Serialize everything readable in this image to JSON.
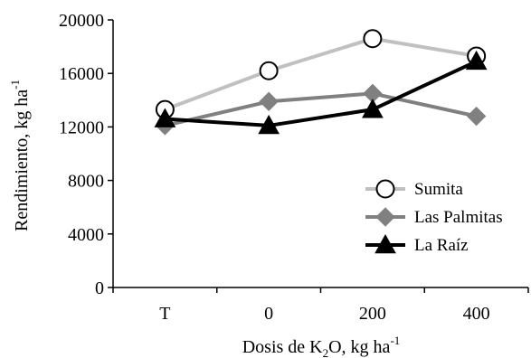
{
  "chart_data": {
    "type": "line",
    "categories": [
      "T",
      "0",
      "200",
      "400"
    ],
    "series": [
      {
        "name": "Sumita",
        "values": [
          13300,
          16200,
          18600,
          17300
        ],
        "color": "#c0c0c0",
        "marker": "circle-open"
      },
      {
        "name": "Las Palmitas",
        "values": [
          12100,
          13900,
          14500,
          12800
        ],
        "color": "#808080",
        "marker": "diamond"
      },
      {
        "name": "La Raíz",
        "values": [
          12600,
          12100,
          13300,
          16900
        ],
        "color": "#000000",
        "marker": "triangle"
      }
    ],
    "ylim": [
      0,
      20000
    ],
    "yticks": [
      "0",
      "4000",
      "8000",
      "12000",
      "16000",
      "20000"
    ],
    "ylabel": {
      "text": "Rendimiento, kg ha",
      "superscript": "-1"
    },
    "xlabel": {
      "prefix": "Dosis de K",
      "subscript": "2",
      "middle": "O, kg ha",
      "superscript": "-1"
    },
    "grid": false,
    "legend": "bottom-right"
  }
}
